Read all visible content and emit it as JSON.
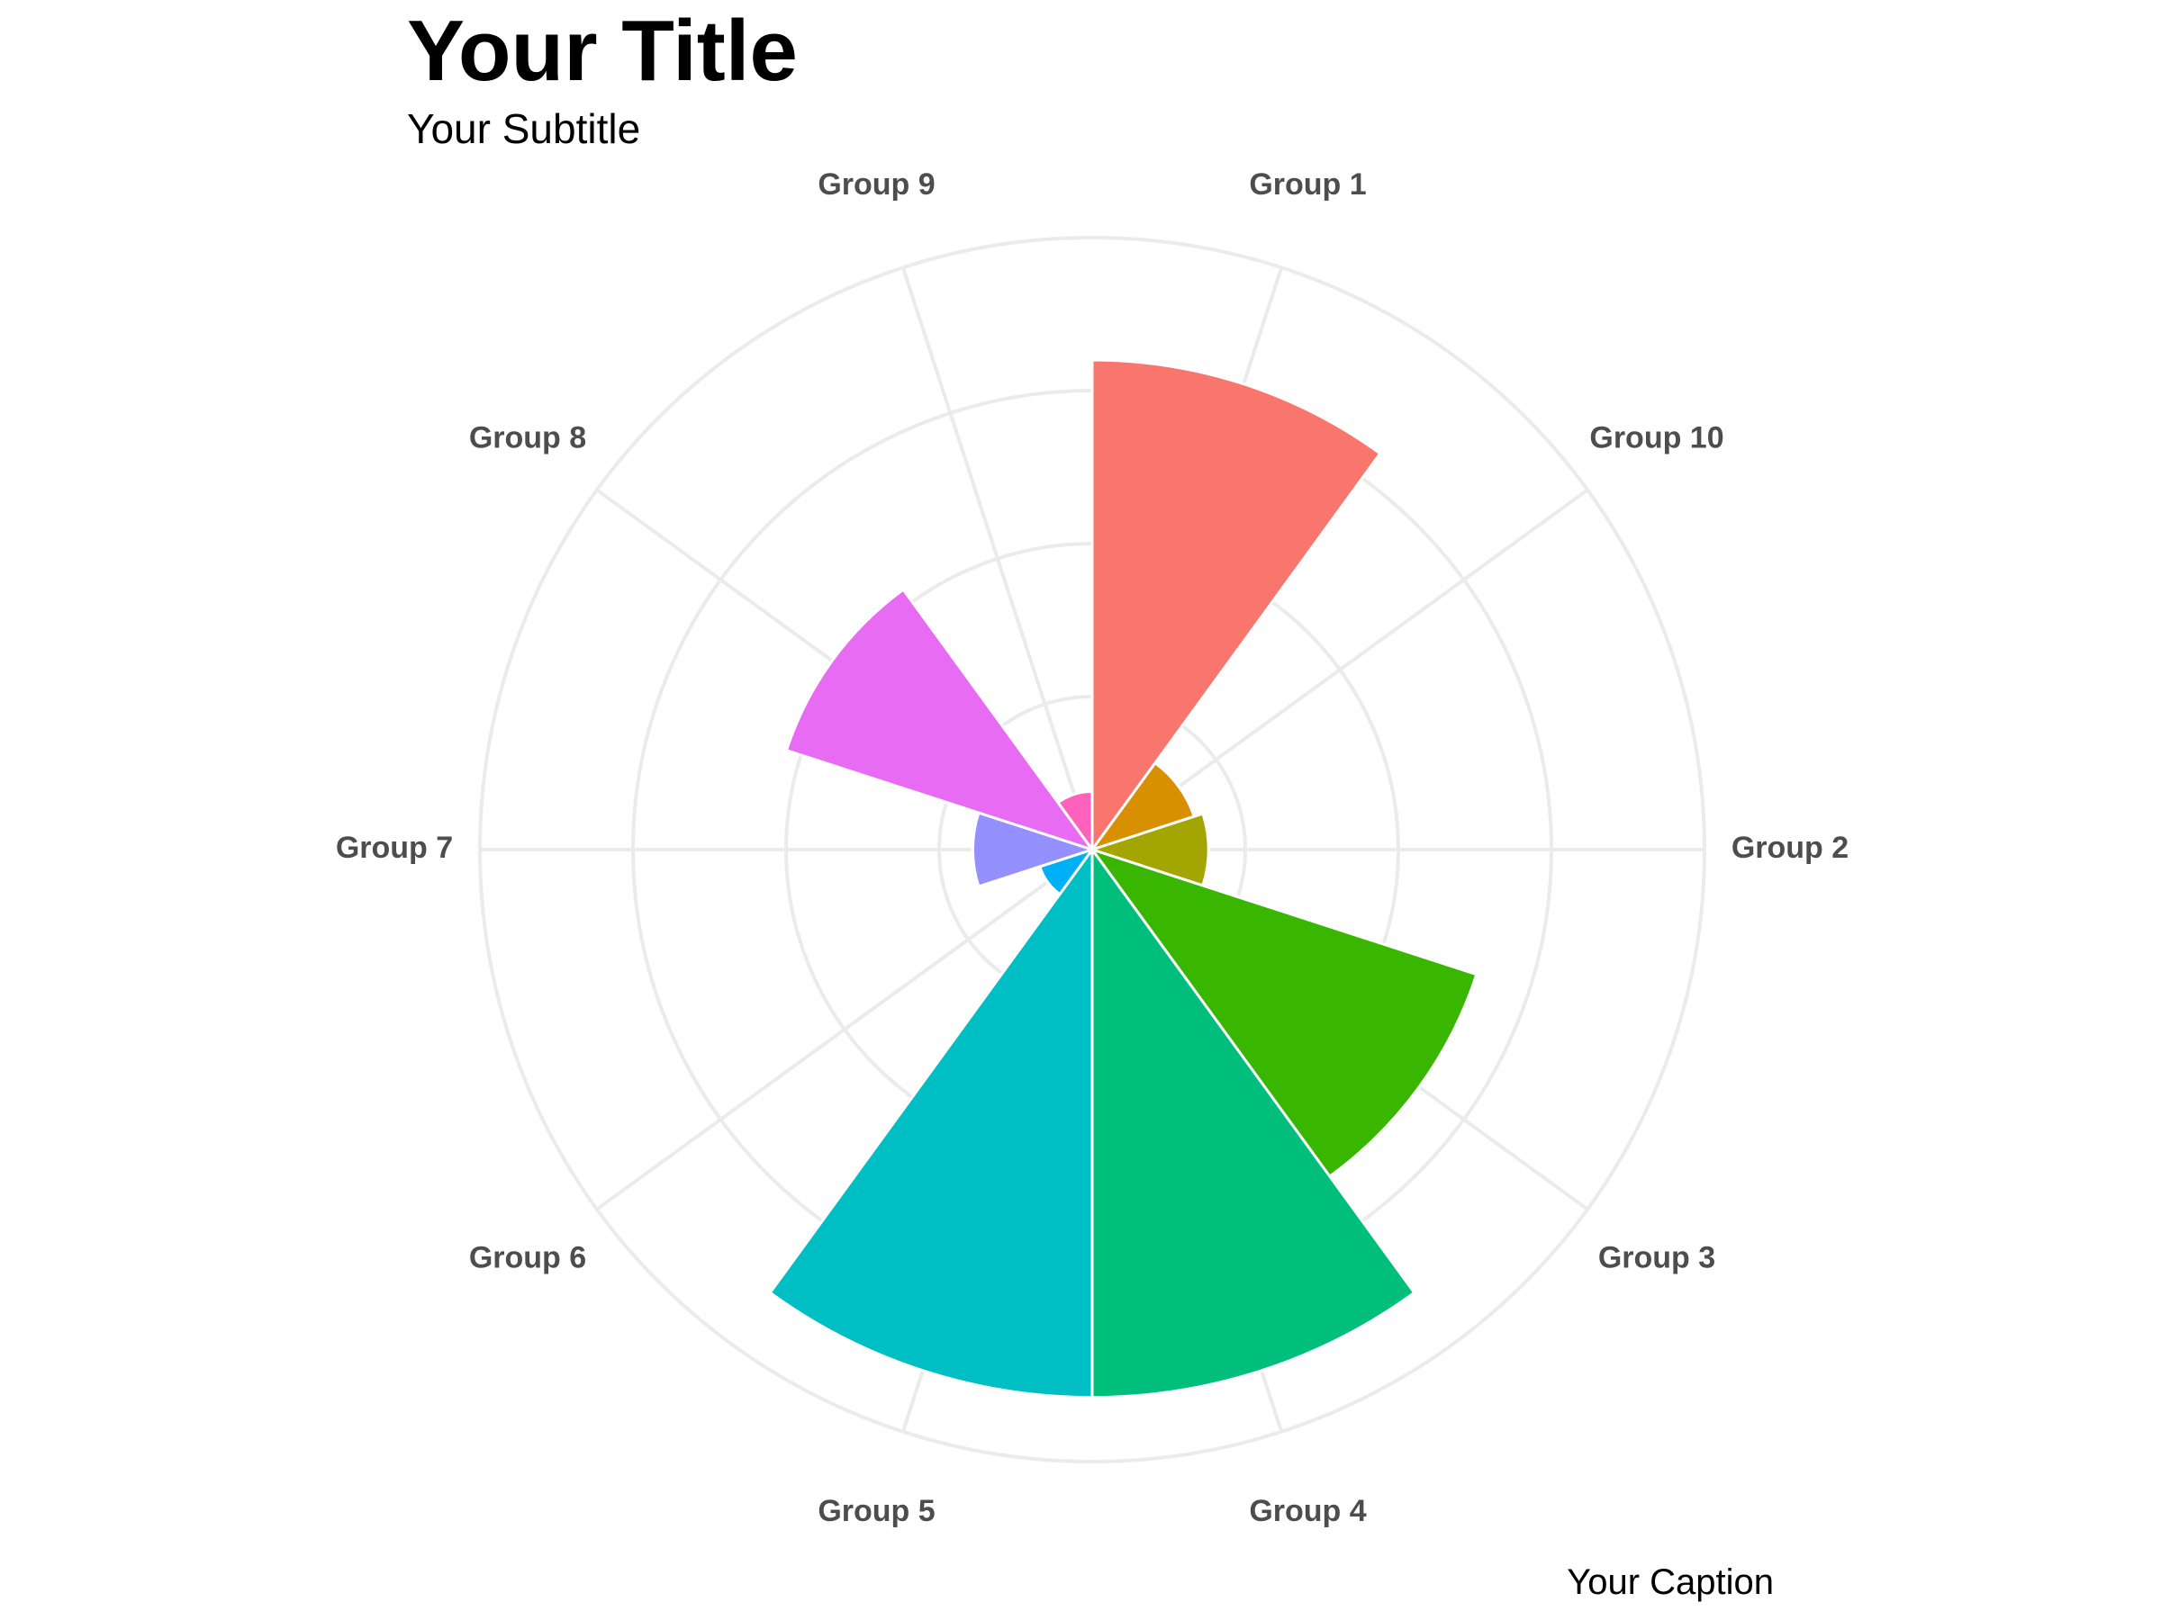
{
  "chart_data": {
    "type": "bar",
    "subtype": "polar (coxcomb / rose)",
    "title": "Your Title",
    "subtitle": "Your Subtitle",
    "caption": "Your Caption",
    "categories": [
      "Group 1",
      "Group 10",
      "Group 2",
      "Group 3",
      "Group 4",
      "Group 5",
      "Group 6",
      "Group 7",
      "Group 8",
      "Group 9"
    ],
    "values": [
      16,
      3.5,
      3.8,
      13.2,
      17.9,
      17.9,
      1.8,
      3.9,
      10.5,
      1.9
    ],
    "rlim": [
      0,
      20
    ],
    "radial_gridlines": [
      5,
      10,
      15,
      20
    ],
    "colors": [
      "#F8766D",
      "#D89000",
      "#A3A500",
      "#39B600",
      "#00BF7D",
      "#00BFC4",
      "#00B0F6",
      "#9590FF",
      "#E76BF3",
      "#FF62BC"
    ],
    "grid": true,
    "legend": "none"
  }
}
